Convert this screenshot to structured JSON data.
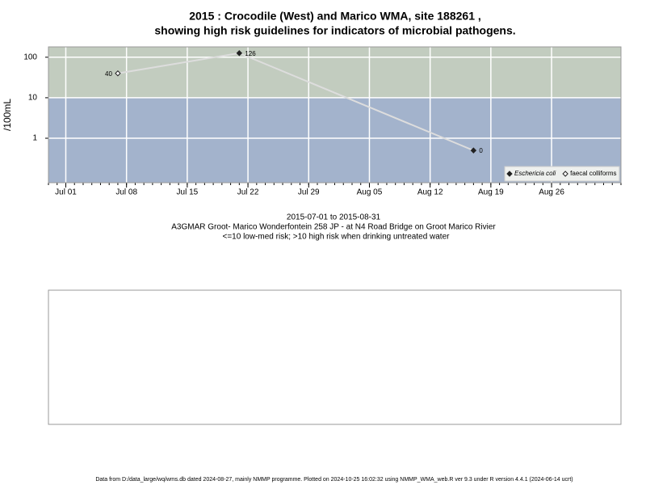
{
  "chart_data": {
    "type": "line",
    "title": "2015 : Crocodile (West) and Marico WMA, site 188261 ,",
    "subtitle": "showing high risk guidelines for indicators of microbial pathogens.",
    "ylabel": "/100mL",
    "log_y": true,
    "grid": true,
    "legend": "bottom-right",
    "threshold": 10,
    "band_colors": {
      "above": "#c2ccbf",
      "below": "#a3b3cc"
    },
    "line_color": "#dddddd",
    "series": [
      {
        "name": "Eschericia coli",
        "marker": "filled",
        "color": "#222222",
        "x": [
          "2015-07-21",
          "2015-08-17"
        ],
        "values": [
          126,
          0.5
        ],
        "value_labels": [
          "126",
          "0"
        ]
      },
      {
        "name": "faecal colliforms",
        "marker": "open",
        "color": "#222222",
        "x": [
          "2015-07-07"
        ],
        "values": [
          40
        ],
        "value_labels": [
          "40"
        ]
      }
    ],
    "xlim": [
      "2015-06-29",
      "2015-09-03"
    ],
    "xticks": [
      {
        "value": "2015-07-01",
        "label": "Jul 01"
      },
      {
        "value": "2015-07-08",
        "label": "Jul 08"
      },
      {
        "value": "2015-07-15",
        "label": "Jul 15"
      },
      {
        "value": "2015-07-22",
        "label": "Jul 22"
      },
      {
        "value": "2015-07-29",
        "label": "Jul 29"
      },
      {
        "value": "2015-08-05",
        "label": "Aug 05"
      },
      {
        "value": "2015-08-12",
        "label": "Aug 12"
      },
      {
        "value": "2015-08-19",
        "label": "Aug 19"
      },
      {
        "value": "2015-08-26",
        "label": "Aug 26"
      }
    ],
    "ylim": [
      0.08,
      180
    ],
    "yticks": [
      1,
      10,
      100
    ],
    "caption": [
      "2015-07-01 to 2015-08-31",
      "A3GMAR Groot- Marico Wonderfontein 258 JP - at N4 Road Bridge on Groot Marico Rivier",
      "<=10 low-med risk; >10 high risk when drinking untreated water"
    ],
    "footer": "Data from D:/data_large/wq/wms.db dated 2024-08-27, mainly NMMP programme. Plotted on 2024-10-25 16:02:32 using NMMP_WMA_web.R ver 9.3 under R version 4.4.1 (2024-06-14 ucrt)"
  }
}
